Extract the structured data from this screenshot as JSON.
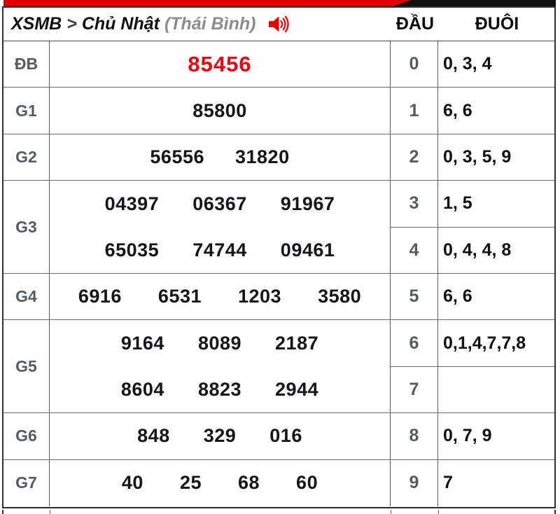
{
  "header": {
    "brand": "XSMB",
    "chevron": ">",
    "day": "Chủ Nhật",
    "region": "(Thái Bình)",
    "speaker_icon": "speaker-icon",
    "dau_label": "ĐẦU",
    "duoi_label": "ĐUÔI"
  },
  "colors": {
    "bar_red": "#dd0000",
    "bar_black": "#101010",
    "special_prize_red": "#e20613",
    "number_color": "#15161a",
    "label_gray": "#565a63",
    "border_dark": "#2e2e2e",
    "border_light": "#6e6e6e"
  },
  "prizes": [
    {
      "label": "ĐB",
      "span": 1,
      "highlight": true,
      "rows": [
        [
          "85456"
        ]
      ]
    },
    {
      "label": "G1",
      "span": 1,
      "highlight": false,
      "rows": [
        [
          "85800"
        ]
      ]
    },
    {
      "label": "G2",
      "span": 1,
      "highlight": false,
      "rows": [
        [
          "56556",
          "31820"
        ]
      ]
    },
    {
      "label": "G3",
      "span": 2,
      "highlight": false,
      "rows": [
        [
          "04397",
          "06367",
          "91967"
        ],
        [
          "65035",
          "74744",
          "09461"
        ]
      ]
    },
    {
      "label": "G4",
      "span": 1,
      "highlight": false,
      "rows": [
        [
          "6916",
          "6531",
          "1203",
          "3580"
        ]
      ]
    },
    {
      "label": "G5",
      "span": 2,
      "highlight": false,
      "rows": [
        [
          "9164",
          "8089",
          "2187"
        ],
        [
          "8604",
          "8823",
          "2944"
        ]
      ]
    },
    {
      "label": "G6",
      "span": 1,
      "highlight": false,
      "rows": [
        [
          "848",
          "329",
          "016"
        ]
      ]
    },
    {
      "label": "G7",
      "span": 1,
      "highlight": false,
      "rows": [
        [
          "40",
          "25",
          "68",
          "60"
        ]
      ]
    }
  ],
  "dau_duoi": [
    {
      "dau": "0",
      "duoi": "0, 3, 4"
    },
    {
      "dau": "1",
      "duoi": "6, 6"
    },
    {
      "dau": "2",
      "duoi": "0, 3, 5, 9"
    },
    {
      "dau": "3",
      "duoi": "1, 5"
    },
    {
      "dau": "4",
      "duoi": "0, 4, 4, 8"
    },
    {
      "dau": "5",
      "duoi": "6, 6"
    },
    {
      "dau": "6",
      "duoi": "0,1,4,7,7,8"
    },
    {
      "dau": "7",
      "duoi": ""
    },
    {
      "dau": "8",
      "duoi": "0, 7, 9"
    },
    {
      "dau": "9",
      "duoi": "7"
    }
  ]
}
